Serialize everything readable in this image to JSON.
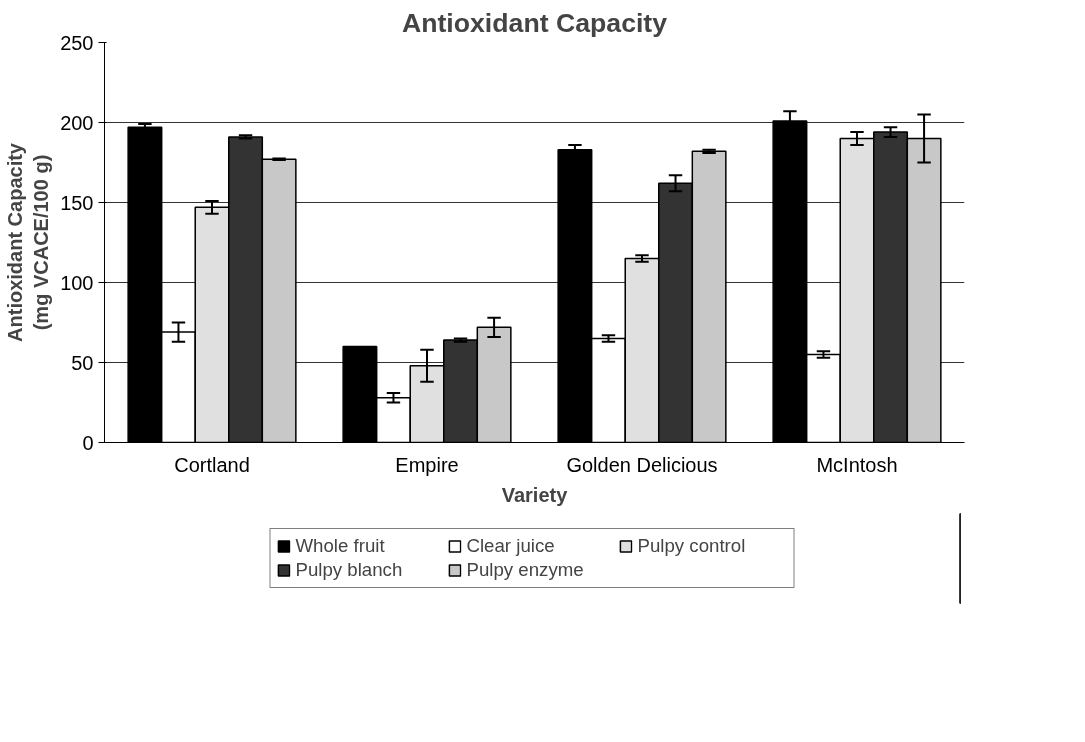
{
  "chart_data": {
    "type": "bar",
    "title": "Antioxidant Capacity",
    "xlabel": "Variety",
    "ylabel": "Antioxidant Capacity\n(mg VCACE/100 g)",
    "categories": [
      "Cortland",
      "Empire",
      "Golden Delicious",
      "McIntosh"
    ],
    "series": [
      {
        "name": "Whole fruit",
        "color": "#000000",
        "values": [
          197,
          60,
          183,
          201
        ],
        "errors": [
          2,
          null,
          3,
          6
        ]
      },
      {
        "name": "Clear juice",
        "color": "#ffffff",
        "values": [
          69,
          28,
          65,
          55
        ],
        "errors": [
          6,
          3,
          2,
          2
        ]
      },
      {
        "name": "Pulpy control",
        "color": "#e0e0e0",
        "values": [
          147,
          48,
          115,
          190
        ],
        "errors": [
          4,
          10,
          2,
          4
        ]
      },
      {
        "name": "Pulpy blanch",
        "color": "#333333",
        "values": [
          191,
          64,
          162,
          194
        ],
        "errors": [
          1,
          1,
          5,
          3
        ]
      },
      {
        "name": "Pulpy enzyme",
        "color": "#c8c8c8",
        "values": [
          177,
          72,
          182,
          190
        ],
        "errors": [
          0.5,
          6,
          1,
          15
        ]
      }
    ],
    "ylim": [
      0,
      250
    ],
    "yticks": [
      0,
      50,
      100,
      150,
      200,
      250
    ],
    "grid": "y",
    "legend": "bottom"
  }
}
